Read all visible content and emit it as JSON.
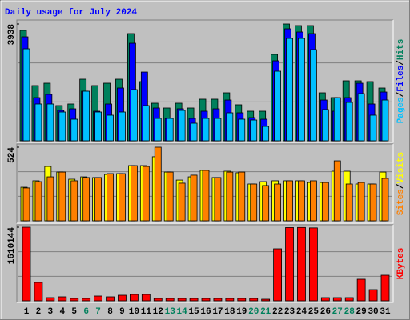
{
  "legend_separator": "/",
  "chart_data": [
    {
      "type": "bar",
      "title": "Daily usage for July 2024",
      "ylim": [
        0,
        3938
      ],
      "yticks": [
        3938
      ],
      "series": [
        {
          "name": "Hits",
          "color": "#00805c",
          "values": [
            3722,
            1861,
            1942,
            1187,
            1241,
            2077,
            1861,
            1942,
            2077,
            3614,
            1996,
            1268,
            1106,
            1268,
            1106,
            1403,
            1403,
            1618,
            1214,
            998,
            998,
            2913,
            3938,
            3884,
            3884,
            1618,
            1457,
            2023,
            2023,
            1996,
            1780
          ]
        },
        {
          "name": "Files",
          "color": "#0000ff",
          "values": [
            3506,
            1456,
            1564,
            1025,
            1079,
            1672,
            998,
            1241,
            1780,
            3290,
            2319,
            1106,
            755,
            1079,
            755,
            998,
            1079,
            1375,
            944,
            782,
            728,
            2697,
            3776,
            3668,
            3614,
            1375,
            998,
            1456,
            1942,
            1241,
            1645
          ]
        },
        {
          "name": "Pages",
          "color": "#00c0ff",
          "values": [
            3101,
            1241,
            1241,
            971,
            728,
            1672,
            971,
            863,
            971,
            1726,
            1187,
            755,
            755,
            1025,
            593,
            755,
            755,
            944,
            728,
            701,
            485,
            2346,
            3452,
            3452,
            3074,
            1052,
            1456,
            1294,
            1591,
            863,
            1375
          ]
        }
      ]
    },
    {
      "type": "bar",
      "ylim": [
        0,
        524
      ],
      "yticks": [
        524
      ],
      "series": [
        {
          "name": "Visits",
          "color": "#ffff00",
          "values": [
            239,
            285,
            387,
            347,
            296,
            313,
            308,
            330,
            336,
            393,
            393,
            456,
            347,
            290,
            313,
            359,
            308,
            353,
            342,
            262,
            279,
            285,
            285,
            285,
            273,
            273,
            353,
            353,
            262,
            262,
            347
          ]
        },
        {
          "name": "Sites",
          "color": "#ff8000",
          "values": [
            234,
            279,
            313,
            347,
            285,
            308,
            308,
            336,
            336,
            393,
            387,
            524,
            347,
            268,
            325,
            359,
            308,
            347,
            347,
            262,
            251,
            262,
            285,
            285,
            285,
            273,
            427,
            262,
            273,
            262,
            302
          ]
        }
      ]
    },
    {
      "type": "bar",
      "ylim": [
        0,
        1610144
      ],
      "yticks": [
        1610144
      ],
      "categories": [
        "1",
        "2",
        "3",
        "4",
        "5",
        "6",
        "7",
        "8",
        "9",
        "10",
        "11",
        "12",
        "13",
        "14",
        "15",
        "16",
        "17",
        "18",
        "19",
        "20",
        "21",
        "22",
        "23",
        "24",
        "25",
        "26",
        "27",
        "28",
        "29",
        "30",
        "31"
      ],
      "highlight": [
        5,
        6,
        12,
        13,
        19,
        20,
        26,
        27
      ],
      "highlight_color": "#00805c",
      "series": [
        {
          "name": "KBytes",
          "color": "#ff0000",
          "values": [
            1610144,
            402500,
            70000,
            87500,
            52500,
            52500,
            105000,
            87500,
            122500,
            140000,
            140000,
            52500,
            52500,
            52500,
            52500,
            52500,
            52500,
            52500,
            52500,
            52500,
            35000,
            1137600,
            1602000,
            1605000,
            1595000,
            70000,
            70000,
            70000,
            472600,
            245000,
            560000
          ]
        }
      ]
    }
  ]
}
